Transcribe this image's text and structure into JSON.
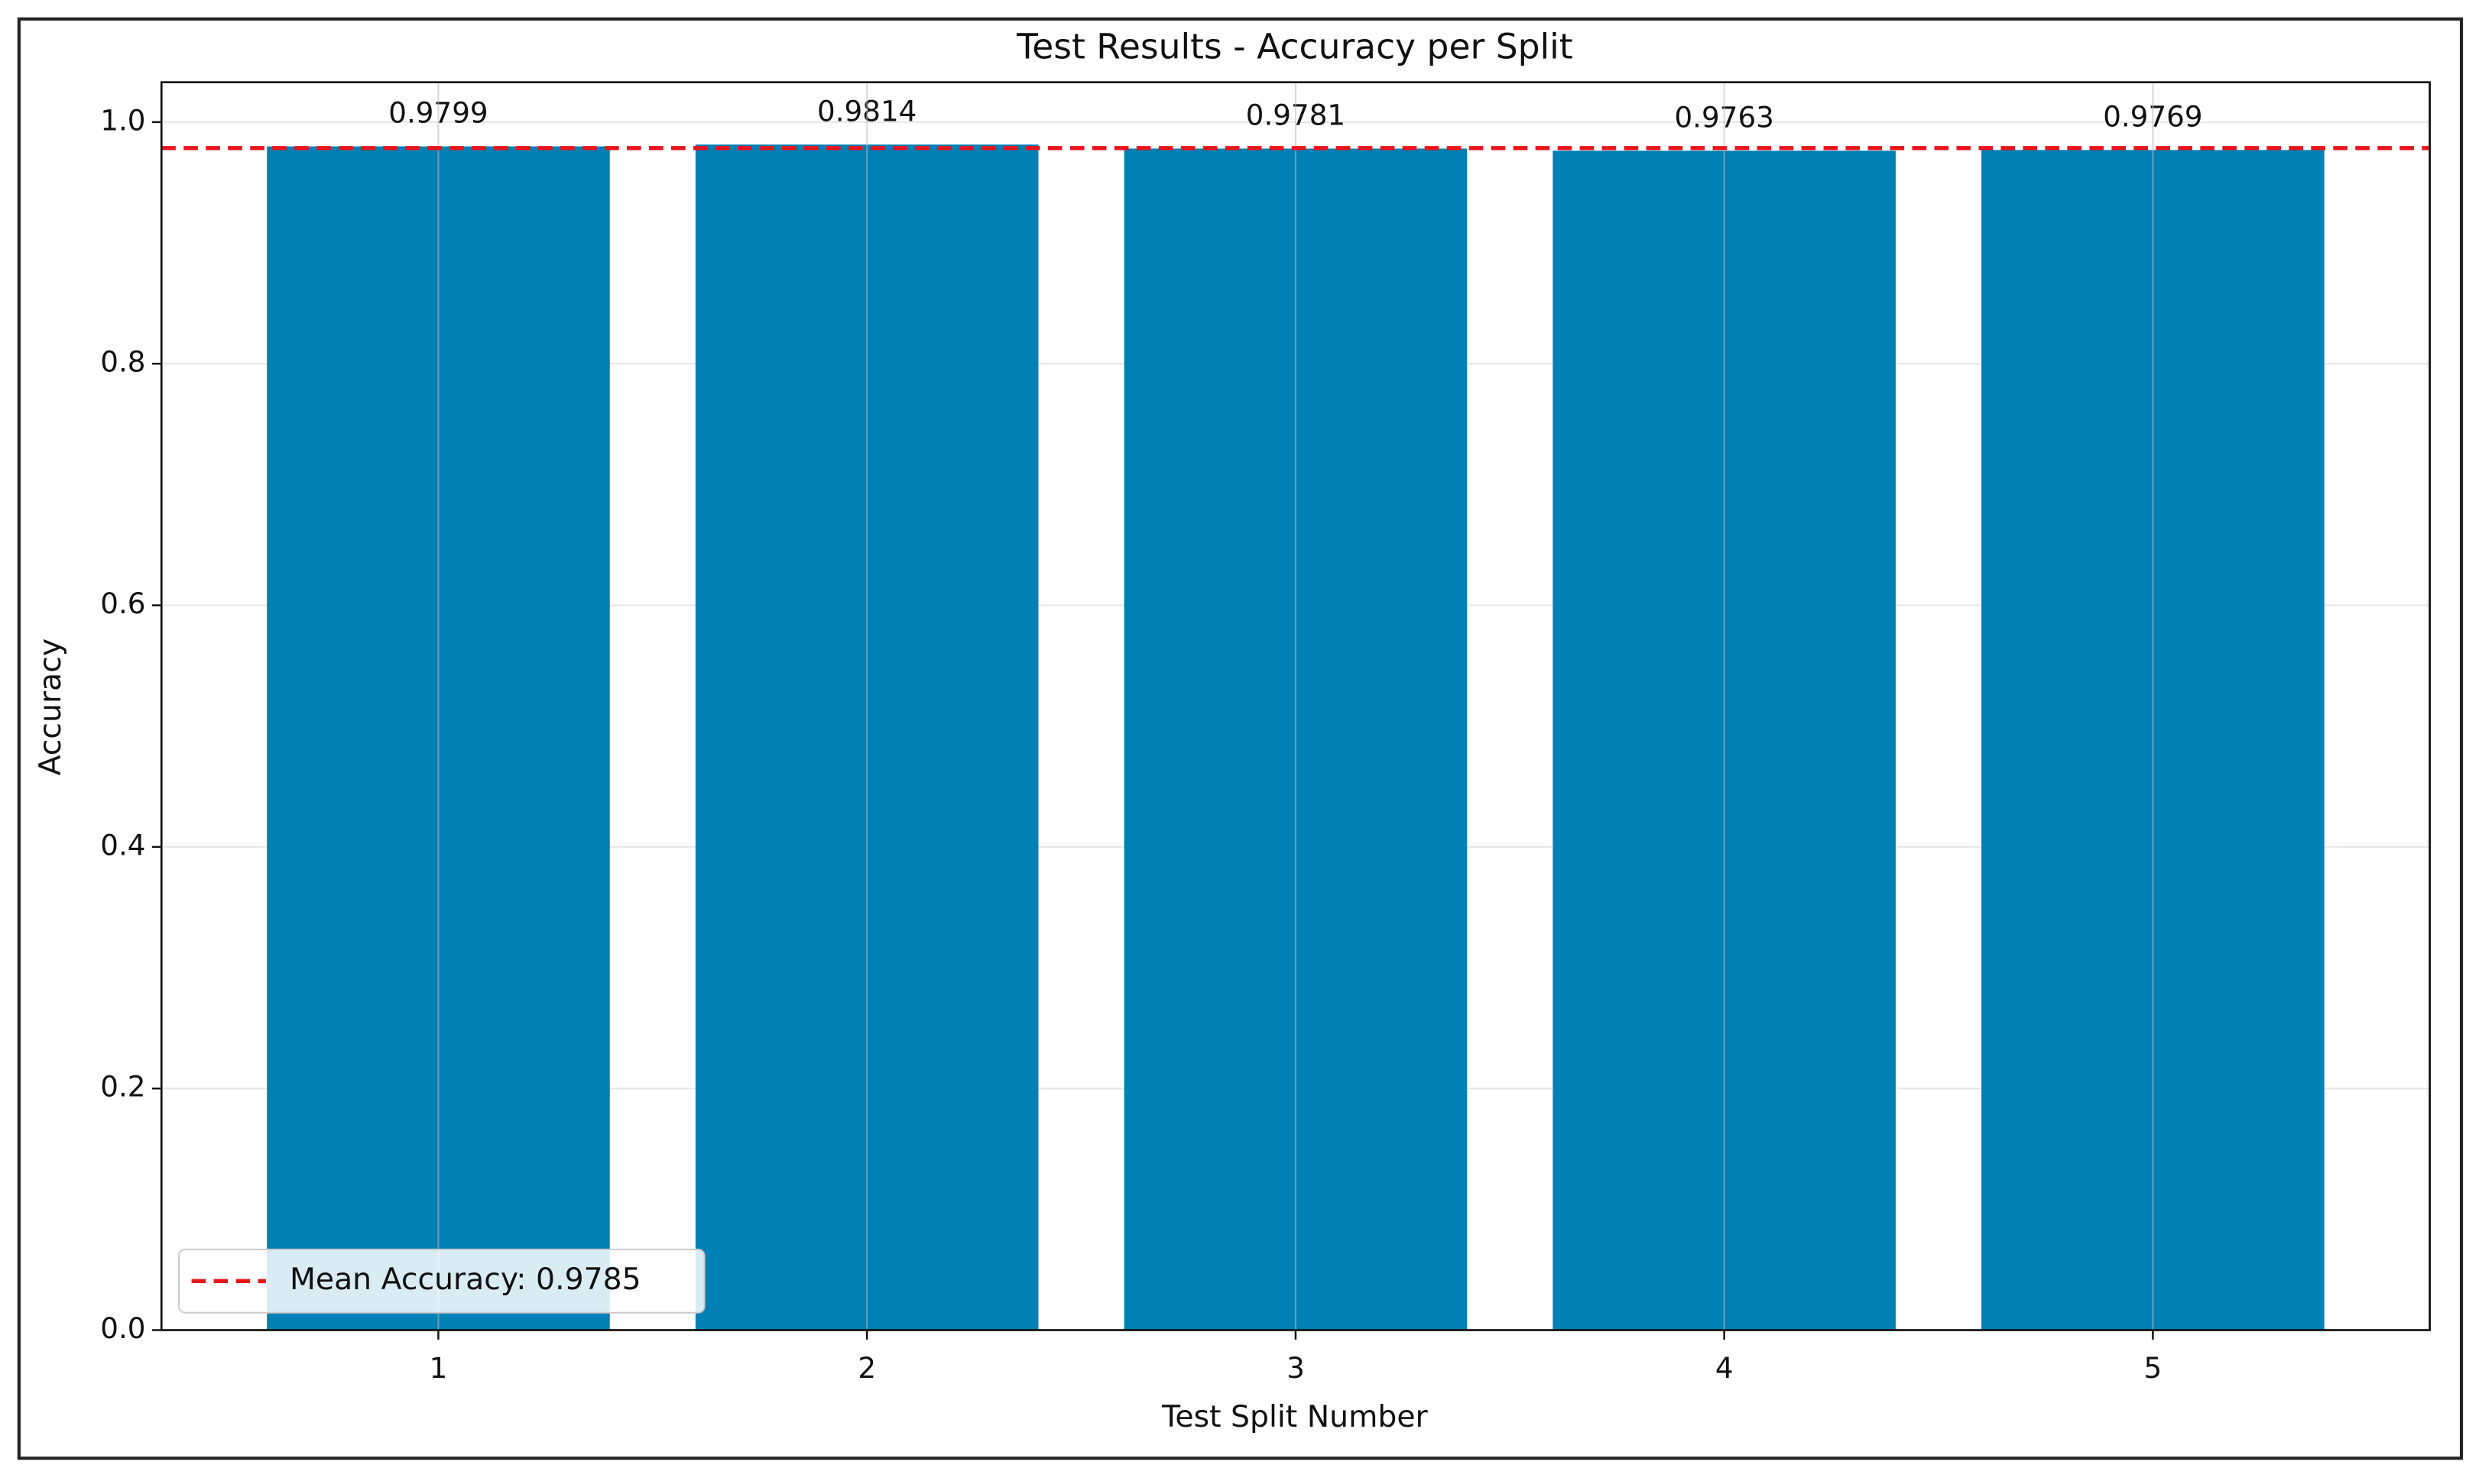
{
  "chart_data": {
    "type": "bar",
    "title": "Test Results - Accuracy per Split",
    "x_label": "Test Split Number",
    "y_label": "Accuracy",
    "categories": [
      "1",
      "2",
      "3",
      "4",
      "5"
    ],
    "values": [
      0.9799,
      0.9814,
      0.9781,
      0.9763,
      0.9769
    ],
    "color": "#0180b5",
    "ylim": [
      0,
      1.033
    ],
    "yticks": [
      {
        "value": 0,
        "label": "0.0"
      },
      0.2,
      0.4,
      0.6,
      0.8,
      {
        "value": 1,
        "label": "1.0"
      }
    ],
    "grid": true,
    "mean_line": {
      "label": "Mean Accuracy: 0.9785",
      "value": 0.9785,
      "color": "#e8141c"
    },
    "legend": "lower left"
  }
}
